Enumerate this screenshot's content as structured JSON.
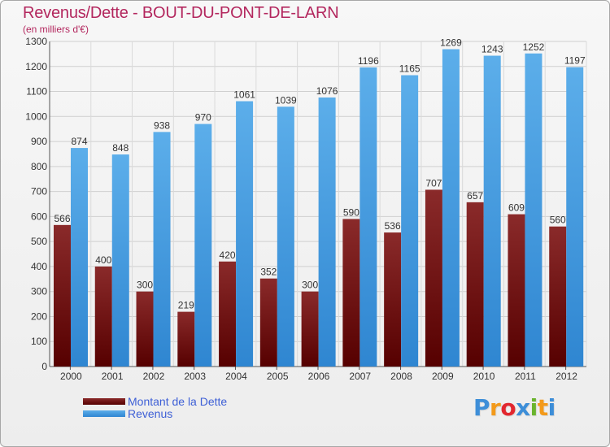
{
  "title": "Revenus/Dette - BOUT-DU-PONT-DE-LARN",
  "subtitle": "(en milliers d'€)",
  "logo": {
    "letters": [
      "P",
      "r",
      "o",
      "x",
      "i",
      "t",
      "i"
    ],
    "colors": [
      "#3d8ed8",
      "#f39a1b",
      "#e2272f",
      "#3d8ed8",
      "#6ab42d",
      "#f39a1b",
      "#3d8ed8"
    ]
  },
  "legend": [
    {
      "label": "Montant de la Dette",
      "color": "#6e0d0d"
    },
    {
      "label": "Revenus",
      "color": "#4ea6e6"
    }
  ],
  "chart_data": {
    "type": "bar",
    "title": "Revenus/Dette - BOUT-DU-PONT-DE-LARN",
    "subtitle": "(en milliers d'€)",
    "categories": [
      "2000",
      "2001",
      "2002",
      "2003",
      "2004",
      "2005",
      "2006",
      "2007",
      "2008",
      "2009",
      "2010",
      "2011",
      "2012"
    ],
    "series": [
      {
        "name": "Montant de la Dette",
        "color": "#7a1515",
        "values": [
          566,
          400,
          300,
          219,
          420,
          352,
          300,
          590,
          536,
          707,
          657,
          609,
          560
        ]
      },
      {
        "name": "Revenus",
        "color": "#4ea6e6",
        "values": [
          874,
          848,
          938,
          970,
          1061,
          1039,
          1076,
          1196,
          1165,
          1269,
          1243,
          1252,
          1197
        ]
      }
    ],
    "ylim": [
      0,
      1300
    ],
    "yticks": [
      0,
      100,
      200,
      300,
      400,
      500,
      600,
      700,
      800,
      900,
      1000,
      1100,
      1200,
      1300
    ],
    "grid": true,
    "legend_position": "bottom-left"
  }
}
